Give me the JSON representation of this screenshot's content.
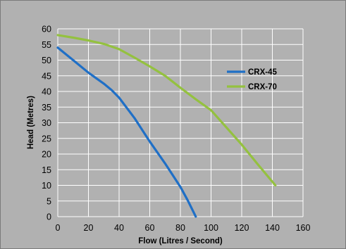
{
  "chart_data": {
    "type": "line",
    "xlabel": "Flow (Litres / Second)",
    "ylabel": "Head (Metres)",
    "xlim": [
      0,
      160
    ],
    "ylim": [
      0,
      60
    ],
    "x_ticks": [
      0,
      20,
      40,
      60,
      80,
      100,
      120,
      140,
      160
    ],
    "y_ticks": [
      0,
      5,
      10,
      15,
      20,
      25,
      30,
      35,
      40,
      45,
      50,
      55,
      60
    ],
    "grid": "both",
    "legend_position": "right",
    "series": [
      {
        "name": "CRX-45",
        "color": "#1f6fc6",
        "points": [
          [
            0,
            54
          ],
          [
            10,
            50
          ],
          [
            20,
            46
          ],
          [
            30,
            42.5
          ],
          [
            35,
            40.5
          ],
          [
            40,
            38
          ],
          [
            50,
            31.5
          ],
          [
            60,
            24
          ],
          [
            70,
            17
          ],
          [
            80,
            9.5
          ],
          [
            85,
            5
          ],
          [
            90,
            0
          ]
        ]
      },
      {
        "name": "CRX-70",
        "color": "#94c13f",
        "points": [
          [
            0,
            58
          ],
          [
            10,
            57.2
          ],
          [
            20,
            56.3
          ],
          [
            30,
            55.2
          ],
          [
            40,
            53.5
          ],
          [
            50,
            50.8
          ],
          [
            60,
            48
          ],
          [
            70,
            45
          ],
          [
            80,
            41.2
          ],
          [
            90,
            37.5
          ],
          [
            100,
            34
          ],
          [
            110,
            28.5
          ],
          [
            120,
            23
          ],
          [
            130,
            17
          ],
          [
            142,
            10
          ]
        ]
      }
    ]
  }
}
